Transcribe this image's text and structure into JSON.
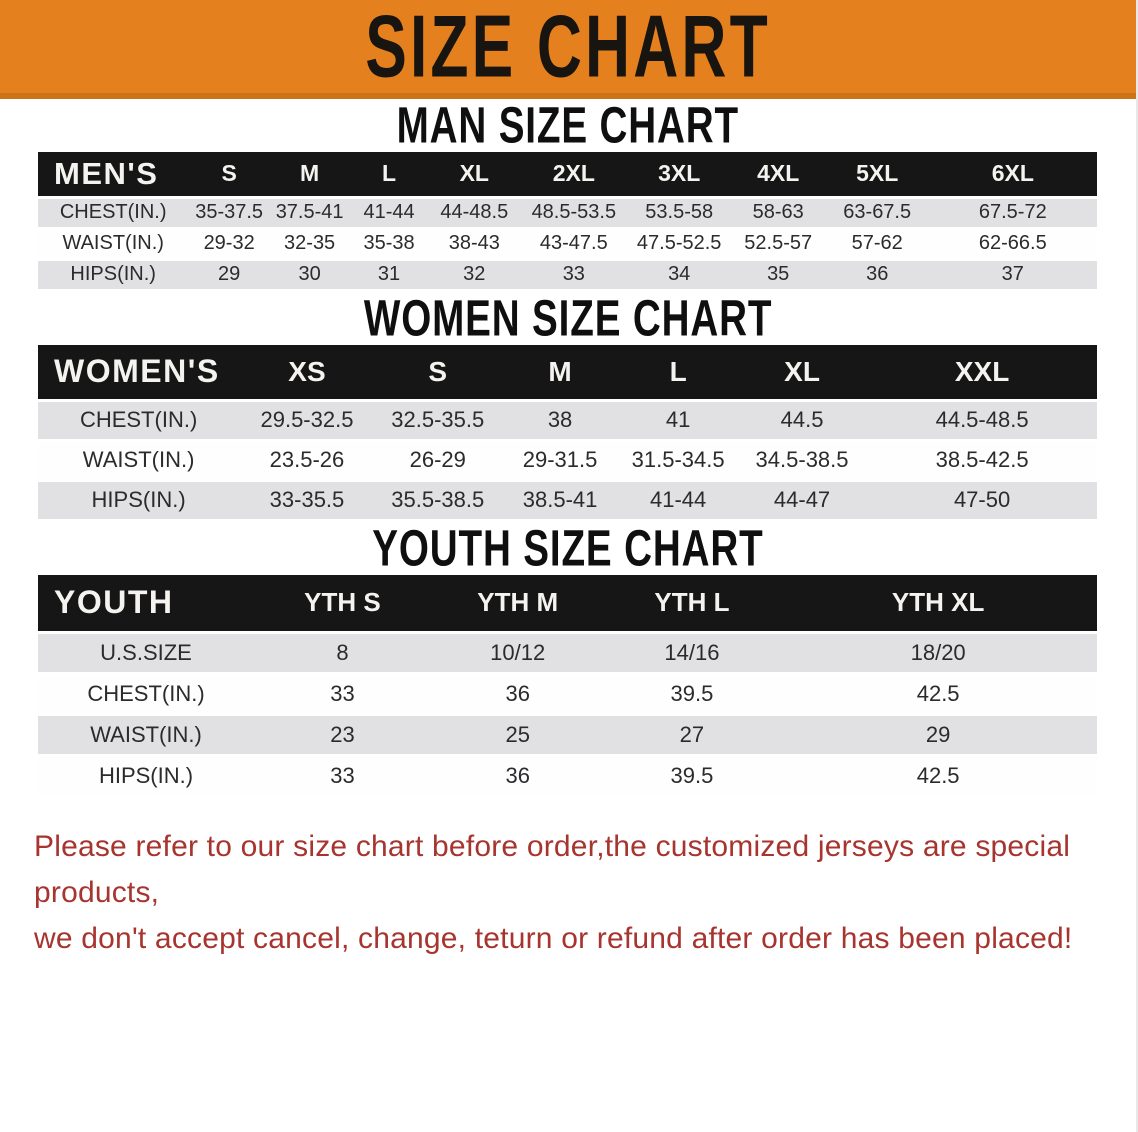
{
  "banner": {
    "title": "SIZE CHART"
  },
  "sections": [
    {
      "heading": "MAN SIZE CHART",
      "table": {
        "header_label": "MEN'S",
        "columns": [
          "S",
          "M",
          "L",
          "XL",
          "2XL",
          "3XL",
          "4XL",
          "5XL",
          "6XL"
        ],
        "rows": [
          {
            "label": "CHEST(IN.)",
            "values": [
              "35-37.5",
              "37.5-41",
              "41-44",
              "44-48.5",
              "48.5-53.5",
              "53.5-58",
              "58-63",
              "63-67.5",
              "67.5-72"
            ]
          },
          {
            "label": "WAIST(IN.)",
            "values": [
              "29-32",
              "32-35",
              "35-38",
              "38-43",
              "43-47.5",
              "47.5-52.5",
              "52.5-57",
              "57-62",
              "62-66.5"
            ]
          },
          {
            "label": "HIPS(IN.)",
            "values": [
              "29",
              "30",
              "31",
              "32",
              "33",
              "34",
              "35",
              "36",
              "37"
            ]
          }
        ]
      }
    },
    {
      "heading": "WOMEN SIZE CHART",
      "table": {
        "header_label": "WOMEN'S",
        "columns": [
          "XS",
          "S",
          "M",
          "L",
          "XL",
          "XXL"
        ],
        "rows": [
          {
            "label": "CHEST(IN.)",
            "values": [
              "29.5-32.5",
              "32.5-35.5",
              "38",
              "41",
              "44.5",
              "44.5-48.5"
            ]
          },
          {
            "label": "WAIST(IN.)",
            "values": [
              "23.5-26",
              "26-29",
              "29-31.5",
              "31.5-34.5",
              "34.5-38.5",
              "38.5-42.5"
            ]
          },
          {
            "label": "HIPS(IN.)",
            "values": [
              "33-35.5",
              "35.5-38.5",
              "38.5-41",
              "41-44",
              "44-47",
              "47-50"
            ]
          }
        ]
      }
    },
    {
      "heading": "YOUTH SIZE CHART",
      "table": {
        "header_label": "YOUTH",
        "columns": [
          "YTH S",
          "YTH M",
          "YTH L",
          "YTH XL"
        ],
        "rows": [
          {
            "label": "U.S.SIZE",
            "values": [
              "8",
              "10/12",
              "14/16",
              "18/20"
            ]
          },
          {
            "label": "CHEST(IN.)",
            "values": [
              "33",
              "36",
              "39.5",
              "42.5"
            ]
          },
          {
            "label": "WAIST(IN.)",
            "values": [
              "23",
              "25",
              "27",
              "29"
            ]
          },
          {
            "label": "HIPS(IN.)",
            "values": [
              "33",
              "36",
              "39.5",
              "42.5"
            ]
          }
        ]
      }
    }
  ],
  "footer": {
    "line1": "Please refer to our size chart before order,the customized jerseys are special products,",
    "line2": "we don't accept cancel, change, teturn or refund after order has been placed!"
  },
  "colors": {
    "accent_orange": "#E5801F",
    "header_band_black": "#161616",
    "row_gray": "#E1E1E3",
    "notice_red": "#A7342E"
  }
}
